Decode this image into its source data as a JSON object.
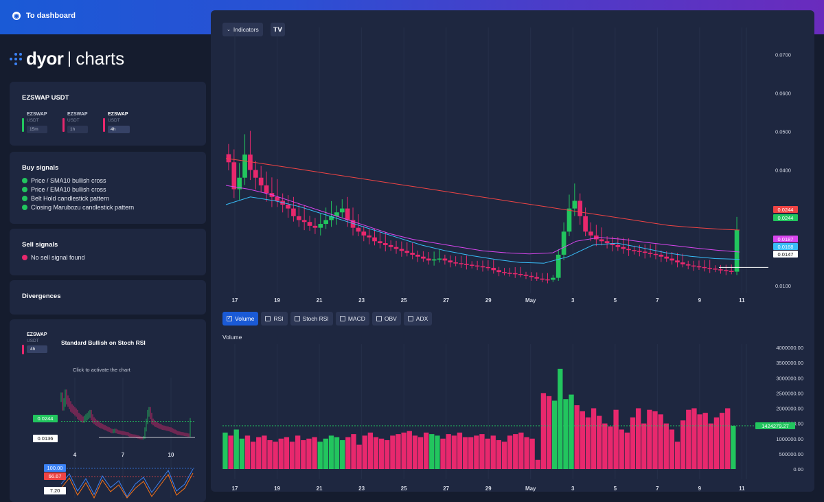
{
  "nav": {
    "back_label": "To dashboard"
  },
  "logo": {
    "brand": "dyor",
    "sub": "charts"
  },
  "pair_card": {
    "title": "EZSWAP USDT",
    "pairs": [
      {
        "name": "EZSWAP",
        "quote": "USDT",
        "tf": "15m",
        "color": "#22c55e",
        "active": false
      },
      {
        "name": "EZSWAP",
        "quote": "USDT",
        "tf": "1h",
        "color": "#e8286d",
        "active": false
      },
      {
        "name": "EZSWAP",
        "quote": "USDT",
        "tf": "4h",
        "color": "#e8286d",
        "active": true
      }
    ]
  },
  "buy_signals": {
    "title": "Buy signals",
    "items": [
      "Price / SMA10 bullish cross",
      "Price / EMA10 bullish cross",
      "Belt Hold candlestick pattern",
      "Closing Marubozu candlestick pattern"
    ]
  },
  "sell_signals": {
    "title": "Sell signals",
    "items": [
      "No sell signal found"
    ]
  },
  "divergences": {
    "title": "Divergences"
  },
  "divergence_card": {
    "pair_name": "EZSWAP",
    "pair_quote": "USDT",
    "pair_tf": "4h",
    "title": "Standard Bullish on Stoch RSI",
    "hint": "Click to activate the chart",
    "price_tags": [
      "0.0244",
      "0.0136"
    ],
    "xticks": [
      "4",
      "7",
      "10"
    ],
    "rsi_tags": [
      "100.00",
      "66.67",
      "7.20"
    ]
  },
  "toolbar": {
    "indicators_label": "Indicators",
    "tv_label": "TV"
  },
  "indicator_tabs": [
    {
      "label": "Volume",
      "checked": true
    },
    {
      "label": "RSI",
      "checked": false
    },
    {
      "label": "Stoch RSI",
      "checked": false
    },
    {
      "label": "MACD",
      "checked": false
    },
    {
      "label": "OBV",
      "checked": false
    },
    {
      "label": "ADX",
      "checked": false
    }
  ],
  "volume_label": "Volume",
  "price_tags": [
    {
      "value": "0.0244",
      "color": "#ef4444"
    },
    {
      "value": "0.0244",
      "color": "#22c55e"
    },
    {
      "value": "0.0187",
      "color": "#d946ef"
    },
    {
      "value": "0.0168",
      "color": "#38bdf8"
    },
    {
      "value": "0.0147",
      "color": "#ffffff"
    }
  ],
  "volume_tag": "1424279.27",
  "colors": {
    "up": "#22c55e",
    "down": "#e8286d",
    "bg": "#1e2740",
    "accent": "#1a5ad6"
  },
  "chart_data": [
    {
      "type": "candlestick",
      "title": "",
      "x_ticks": [
        "17",
        "19",
        "21",
        "23",
        "25",
        "27",
        "29",
        "May",
        "3",
        "5",
        "7",
        "9",
        "11"
      ],
      "y_ticks": [
        "0.0100",
        "0.0200",
        "0.0300",
        "0.0400",
        "0.0500",
        "0.0600",
        "0.0700"
      ],
      "ylim": [
        0.008,
        0.077
      ],
      "series": [
        {
          "values": [
            0.042,
            0.035,
            0.038,
            0.044,
            0.04,
            0.038,
            0.036,
            0.034,
            0.033,
            0.032,
            0.031,
            0.03,
            0.028,
            0.027,
            0.0265,
            0.0255,
            0.025,
            0.026,
            0.027,
            0.028,
            0.029,
            0.03,
            0.027,
            0.025,
            0.024,
            0.023,
            0.0225,
            0.0215,
            0.021,
            0.0205,
            0.02,
            0.0195,
            0.019,
            0.0185,
            0.018,
            0.0175,
            0.017,
            0.0165,
            0.0168,
            0.017,
            0.0165,
            0.016,
            0.0158,
            0.0156,
            0.0154,
            0.0152,
            0.015,
            0.0148,
            0.0146,
            0.014,
            0.0135,
            0.0133,
            0.0132,
            0.013,
            0.0128,
            0.0125,
            0.0122,
            0.0118,
            0.0116,
            0.0115,
            0.012,
            0.018,
            0.024,
            0.03,
            0.032,
            0.028,
            0.024,
            0.023,
            0.022,
            0.0215,
            0.021,
            0.0205,
            0.02,
            0.0195,
            0.0192,
            0.019,
            0.0188,
            0.0185,
            0.0182,
            0.018,
            0.0175,
            0.017,
            0.0165,
            0.016,
            0.0155,
            0.0152,
            0.015,
            0.0148,
            0.0146,
            0.0144,
            0.0142,
            0.014,
            0.0138,
            0.0136,
            0.0244
          ]
        },
        {
          "name": "",
          "values": [
            0.043,
            0.0424,
            0.0417,
            0.041,
            0.0403,
            0.0396,
            0.0389,
            0.0382,
            0.0375,
            0.0368,
            0.0361,
            0.0354,
            0.0347,
            0.034,
            0.0333,
            0.0326,
            0.0319,
            0.0312,
            0.0305,
            0.0298,
            0.0291,
            0.0284,
            0.0277,
            0.027,
            0.0263,
            0.0256,
            0.0252,
            0.0249,
            0.0246,
            0.0244
          ]
        },
        {
          "name": "",
          "values": [
            0.036,
            0.035,
            0.0335,
            0.0315,
            0.0295,
            0.0275,
            0.0255,
            0.0235,
            0.022,
            0.021,
            0.02,
            0.019,
            0.0185,
            0.0182,
            0.0185,
            0.0215,
            0.0225,
            0.022,
            0.0212,
            0.0205,
            0.0198,
            0.0192,
            0.0187
          ]
        },
        {
          "name": "",
          "values": [
            0.031,
            0.033,
            0.032,
            0.0305,
            0.0285,
            0.0265,
            0.0245,
            0.0225,
            0.0205,
            0.019,
            0.0178,
            0.0168,
            0.016,
            0.0158,
            0.0175,
            0.0205,
            0.021,
            0.0198,
            0.0185,
            0.0176,
            0.017,
            0.0168
          ]
        }
      ]
    },
    {
      "type": "bar",
      "title": "Volume",
      "x_ticks": [
        "17",
        "19",
        "21",
        "23",
        "25",
        "27",
        "29",
        "May",
        "3",
        "5",
        "7",
        "9",
        "11"
      ],
      "y_ticks": [
        "0.00",
        "500000.00",
        "1000000.00",
        "1500000.00",
        "2000000.00",
        "2500000.00",
        "3000000.00",
        "3500000.00",
        "4000000.00"
      ],
      "ylim": [
        0,
        4000000
      ],
      "values": [
        1200000,
        1100000,
        1300000,
        1000000,
        1100000,
        900000,
        1050000,
        1100000,
        950000,
        900000,
        1000000,
        1050000,
        900000,
        1100000,
        950000,
        1000000,
        1050000,
        900000,
        1000000,
        1100000,
        1050000,
        950000,
        1050000,
        1150000,
        800000,
        1100000,
        1200000,
        1050000,
        1000000,
        950000,
        1100000,
        1150000,
        1200000,
        1250000,
        1100000,
        1050000,
        1200000,
        1150000,
        1100000,
        1000000,
        1150000,
        1100000,
        1200000,
        1050000,
        1050000,
        1100000,
        1150000,
        1000000,
        1100000,
        950000,
        900000,
        1100000,
        1150000,
        1200000,
        1050000,
        1000000,
        300000,
        2500000,
        2400000,
        2250000,
        3300000,
        2300000,
        2450000,
        2100000,
        1900000,
        1700000,
        2000000,
        1750000,
        1500000,
        1400000,
        1950000,
        1300000,
        1200000,
        1700000,
        2000000,
        1500000,
        1950000,
        1900000,
        1800000,
        1500000,
        1300000,
        900000,
        1600000,
        1950000,
        2000000,
        1800000,
        1850000,
        1500000,
        1700000,
        1850000,
        2000000,
        1424279
      ]
    }
  ]
}
